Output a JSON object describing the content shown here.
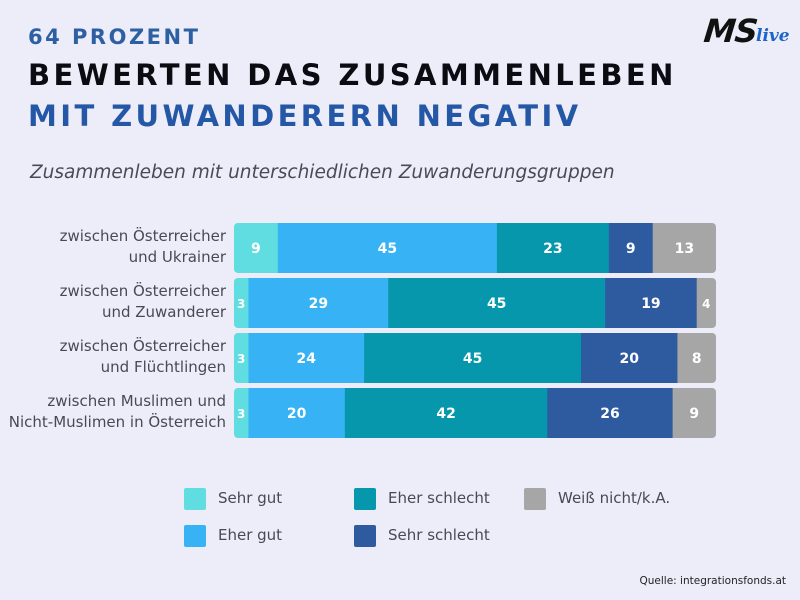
{
  "header": {
    "kicker": "64 PROZENT",
    "title_line1": "BEWERTEN DAS ZUSAMMENLEBEN",
    "title_line2": "MIT ZUWANDERERN NEGATIV",
    "subtitle": "Zusammenleben mit unterschiedlichen Zuwanderungsgruppen"
  },
  "logo": {
    "main": "MS",
    "suffix": "live"
  },
  "source": {
    "label": "Quelle:",
    "value": "integrationsfonds.at"
  },
  "chart_data": {
    "type": "bar",
    "orientation": "horizontal",
    "stacked": true,
    "unit": "%",
    "categories": [
      [
        "zwischen Österreicher",
        "und Ukrainer"
      ],
      [
        "zwischen Österreicher",
        "und Zuwanderer"
      ],
      [
        "zwischen Österreicher",
        "und Flüchtlingen"
      ],
      [
        "zwischen Muslimen und",
        "Nicht-Muslimen in Österreich"
      ]
    ],
    "series": [
      {
        "name": "Sehr gut",
        "color": "#5fdde0",
        "values": [
          9,
          3,
          3,
          3
        ]
      },
      {
        "name": "Eher gut",
        "color": "#37b2f4",
        "values": [
          45,
          29,
          24,
          20
        ]
      },
      {
        "name": "Eher schlecht",
        "color": "#0697ad",
        "values": [
          23,
          45,
          45,
          42
        ]
      },
      {
        "name": "Sehr schlecht",
        "color": "#2e5aa0",
        "values": [
          9,
          19,
          20,
          26
        ]
      },
      {
        "name": "Weiß nicht/k.A.",
        "color": "#a6a6a6",
        "values": [
          13,
          4,
          8,
          9
        ]
      }
    ],
    "legend_position": "bottom",
    "grid": false
  }
}
